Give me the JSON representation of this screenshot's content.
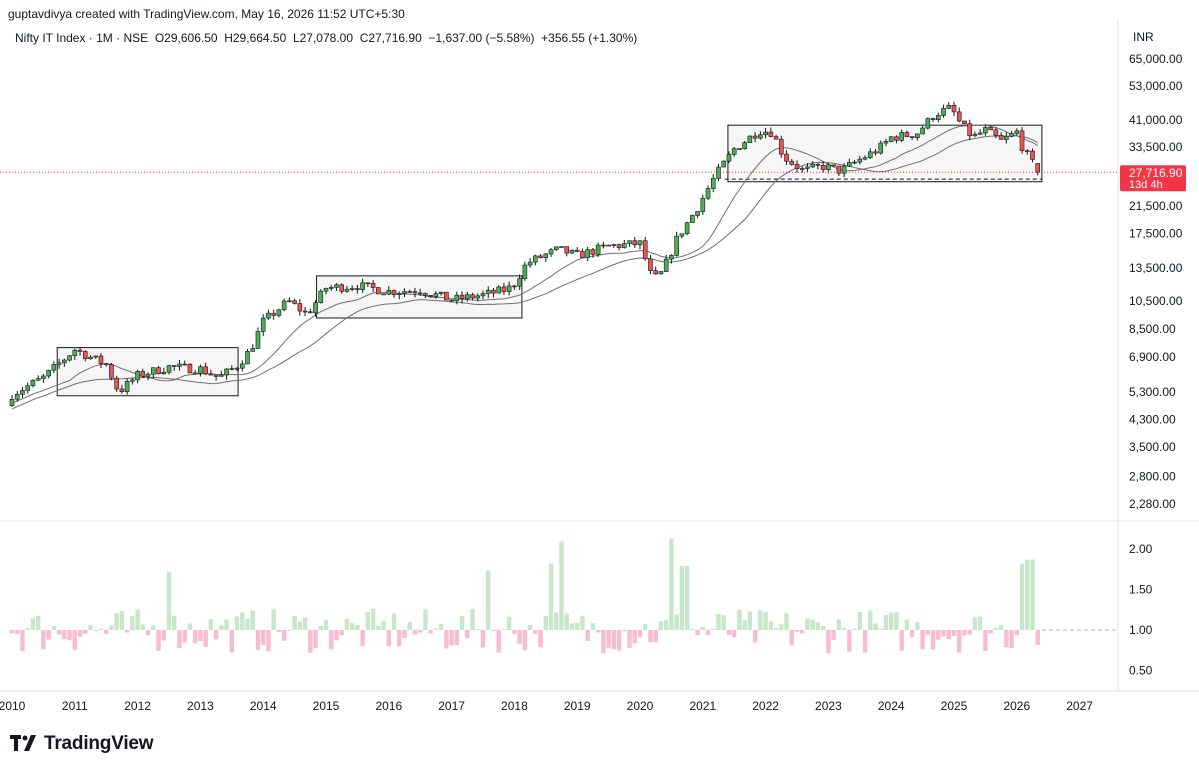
{
  "header": {
    "author_line": "guptavdivya created with TradingView.com, May 16, 2026 11:52 UTC+5:30"
  },
  "legend": {
    "symbol": "Nifty IT Index · 1M · NSE",
    "open": "O29,606.50",
    "high": "H29,664.50",
    "low": "L27,078.00",
    "close": "C27,716.90",
    "change": "−1,637.00 (−5.58%)",
    "volume_change": "+356.55 (+1.30%)"
  },
  "price_axis": {
    "currency": "INR",
    "current_price": "27,716.90",
    "countdown": "13d 4h"
  },
  "brand": {
    "name": "TradingView"
  },
  "colors": {
    "up": "#4caf50",
    "down": "#ef5350",
    "up_hist": "#c8e6c9",
    "down_hist": "#f8bbd0",
    "price_tag": "#f23645",
    "ma": "#707070"
  },
  "chart_data": {
    "type": "candlestick",
    "scale": "log",
    "price_ticks": [
      65000,
      53000,
      41000,
      33500,
      21500,
      17500,
      13500,
      10500,
      8500,
      6900,
      5300,
      4300,
      3500,
      2800,
      2280
    ],
    "price_tick_labels": [
      "65,000.00",
      "53,000.00",
      "41,000.00",
      "33,500.00",
      "21,500.00",
      "17,500.00",
      "13,500.00",
      "10,500.00",
      "8,500.00",
      "6,900.00",
      "5,300.00",
      "4,300.00",
      "3,500.00",
      "2,800.00",
      "2,280.00"
    ],
    "x_labels": [
      "2010",
      "2011",
      "2012",
      "2013",
      "2014",
      "2015",
      "2016",
      "2017",
      "2018",
      "2019",
      "2020",
      "2021",
      "2022",
      "2023",
      "2024",
      "2025",
      "2026",
      "2027"
    ],
    "anchors": [
      [
        2010.0,
        5200
      ],
      [
        2010.5,
        5900
      ],
      [
        2011.0,
        7300
      ],
      [
        2011.5,
        6500
      ],
      [
        2011.7,
        5300
      ],
      [
        2012.0,
        6000
      ],
      [
        2012.5,
        6400
      ],
      [
        2013.0,
        6300
      ],
      [
        2013.3,
        5900
      ],
      [
        2013.6,
        6500
      ],
      [
        2013.8,
        7300
      ],
      [
        2014.0,
        9000
      ],
      [
        2014.4,
        10500
      ],
      [
        2014.7,
        9500
      ],
      [
        2015.0,
        11600
      ],
      [
        2015.5,
        11800
      ],
      [
        2016.0,
        11300
      ],
      [
        2016.5,
        11400
      ],
      [
        2017.0,
        10600
      ],
      [
        2017.5,
        11000
      ],
      [
        2017.9,
        11500
      ],
      [
        2018.0,
        12000
      ],
      [
        2018.2,
        14000
      ],
      [
        2018.7,
        15500
      ],
      [
        2019.0,
        14800
      ],
      [
        2019.5,
        15900
      ],
      [
        2020.0,
        16200
      ],
      [
        2020.2,
        12300
      ],
      [
        2020.35,
        13000
      ],
      [
        2020.6,
        17000
      ],
      [
        2020.9,
        21000
      ],
      [
        2021.2,
        27000
      ],
      [
        2021.5,
        33000
      ],
      [
        2021.9,
        38000
      ],
      [
        2022.1,
        37500
      ],
      [
        2022.3,
        31000
      ],
      [
        2022.6,
        28000
      ],
      [
        2022.9,
        29000
      ],
      [
        2023.2,
        28000
      ],
      [
        2023.5,
        30500
      ],
      [
        2023.8,
        33000
      ],
      [
        2024.0,
        36000
      ],
      [
        2024.4,
        37000
      ],
      [
        2024.7,
        43000
      ],
      [
        2024.95,
        45000
      ],
      [
        2025.1,
        40000
      ],
      [
        2025.3,
        36000
      ],
      [
        2025.5,
        38000
      ],
      [
        2025.75,
        35000
      ],
      [
        2026.0,
        37500
      ],
      [
        2026.1,
        33000
      ],
      [
        2026.25,
        29600
      ],
      [
        2026.35,
        27716.9
      ]
    ],
    "range_boxes": [
      {
        "x_start": 2010.72,
        "x_end": 2013.6,
        "high": 7400,
        "low": 5150
      },
      {
        "x_start": 2014.85,
        "x_end": 2018.12,
        "high": 12700,
        "low": 9250
      },
      {
        "x_start": 2021.4,
        "x_end": 2026.4,
        "high": 39500,
        "low": 25800
      }
    ],
    "support_line": {
      "x_start": 2021.35,
      "x_end": 2026.4,
      "value": 26300
    },
    "histogram": {
      "ticks": [
        2.0,
        1.5,
        1.0,
        0.5
      ],
      "tick_labels": [
        "2.00",
        "1.50",
        "1.00",
        "0.50"
      ],
      "baseline": 1.0,
      "peaks": [
        [
          2018.75,
          2.09
        ],
        [
          2020.5,
          2.13
        ],
        [
          2026.2,
          1.87
        ],
        [
          2018.6,
          1.82
        ],
        [
          2020.7,
          1.79
        ],
        [
          2012.5,
          1.72
        ],
        [
          2017.6,
          1.73
        ],
        [
          2026.05,
          1.82
        ]
      ]
    }
  }
}
